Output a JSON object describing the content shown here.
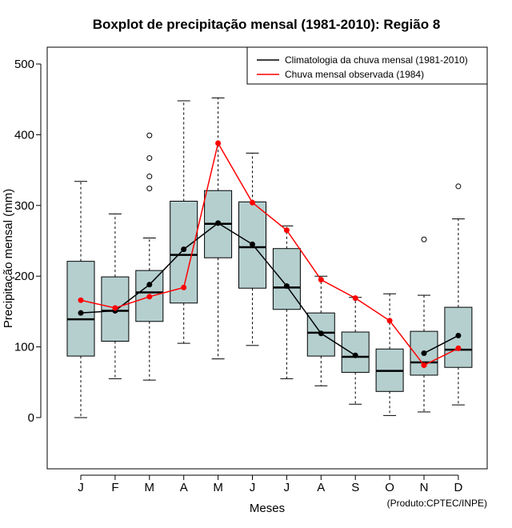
{
  "chart_data": {
    "type": "boxplot",
    "title": "Boxplot de precipitação mensal (1981-2010): Região 8",
    "xlabel": "Meses",
    "ylabel": "Precipitação mensal (mm)",
    "ylim": [
      -70,
      510
    ],
    "yticks": [
      0,
      100,
      200,
      300,
      400,
      500
    ],
    "categories": [
      "J",
      "F",
      "M",
      "A",
      "M",
      "J",
      "J",
      "A",
      "S",
      "O",
      "N",
      "D"
    ],
    "boxes": [
      {
        "min": 0,
        "q1": 87,
        "median": 139,
        "q3": 221,
        "max": 334,
        "outliers": []
      },
      {
        "min": 55,
        "q1": 108,
        "median": 151,
        "q3": 199,
        "max": 288,
        "outliers": []
      },
      {
        "min": 53,
        "q1": 136,
        "median": 177,
        "q3": 208,
        "max": 254,
        "outliers": [
          324,
          341,
          367,
          399
        ]
      },
      {
        "min": 105,
        "q1": 162,
        "median": 230,
        "q3": 306,
        "max": 448,
        "outliers": []
      },
      {
        "min": 83,
        "q1": 226,
        "median": 274,
        "q3": 321,
        "max": 452,
        "outliers": []
      },
      {
        "min": 102,
        "q1": 183,
        "median": 241,
        "q3": 305,
        "max": 374,
        "outliers": []
      },
      {
        "min": 55,
        "q1": 153,
        "median": 184,
        "q3": 239,
        "max": 271,
        "outliers": []
      },
      {
        "min": 45,
        "q1": 87,
        "median": 120,
        "q3": 148,
        "max": 200,
        "outliers": []
      },
      {
        "min": 19,
        "q1": 64,
        "median": 86,
        "q3": 121,
        "max": 170,
        "outliers": []
      },
      {
        "min": 3,
        "q1": 37,
        "median": 66,
        "q3": 97,
        "max": 175,
        "outliers": []
      },
      {
        "min": 8,
        "q1": 60,
        "median": 78,
        "q3": 122,
        "max": 173,
        "outliers": [
          252
        ]
      },
      {
        "min": 18,
        "q1": 71,
        "median": 96,
        "q3": 156,
        "max": 281,
        "outliers": [
          327
        ]
      }
    ],
    "series": [
      {
        "name": "Climatologia da chuva mensal (1981-2010)",
        "color": "#000000",
        "values": [
          148,
          151,
          188,
          238,
          275,
          245,
          186,
          119,
          88,
          null,
          91,
          116
        ]
      },
      {
        "name": "Chuva mensal observada (1984)",
        "color": "#ff0000",
        "values": [
          166,
          155,
          171,
          184,
          388,
          304,
          265,
          195,
          169,
          137,
          74,
          98
        ]
      }
    ],
    "legend_position": "top-right",
    "colors": {
      "box_fill": "#b5cfcf",
      "box_edge": "#000000",
      "outlier": "#000000"
    }
  },
  "credit": "(Produto:CPTEC/INPE)"
}
